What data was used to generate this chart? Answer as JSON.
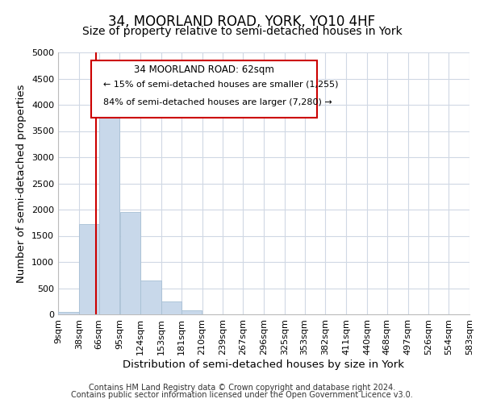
{
  "title": "34, MOORLAND ROAD, YORK, YO10 4HF",
  "subtitle": "Size of property relative to semi-detached houses in York",
  "xlabel": "Distribution of semi-detached houses by size in York",
  "ylabel": "Number of semi-detached properties",
  "bar_edges": [
    9,
    38,
    66,
    95,
    124,
    153,
    181,
    210,
    239,
    267,
    296,
    325,
    353,
    382,
    411,
    440,
    468,
    497,
    526,
    554,
    583
  ],
  "bar_heights": [
    50,
    1730,
    4020,
    1950,
    640,
    245,
    75,
    0,
    0,
    0,
    0,
    0,
    0,
    0,
    0,
    0,
    0,
    0,
    0,
    0
  ],
  "bar_color": "#c8d8ea",
  "bar_edgecolor": "#a8c0d4",
  "property_line_x": 62,
  "property_line_color": "#cc0000",
  "ylim": [
    0,
    5000
  ],
  "yticks": [
    0,
    500,
    1000,
    1500,
    2000,
    2500,
    3000,
    3500,
    4000,
    4500,
    5000
  ],
  "xtick_labels": [
    "9sqm",
    "38sqm",
    "66sqm",
    "95sqm",
    "124sqm",
    "153sqm",
    "181sqm",
    "210sqm",
    "239sqm",
    "267sqm",
    "296sqm",
    "325sqm",
    "353sqm",
    "382sqm",
    "411sqm",
    "440sqm",
    "468sqm",
    "497sqm",
    "526sqm",
    "554sqm",
    "583sqm"
  ],
  "ann_line1": "34 MOORLAND ROAD: 62sqm",
  "ann_line2": "← 15% of semi-detached houses are smaller (1,255)",
  "ann_line3": "84% of semi-detached houses are larger (7,280) →",
  "footnote1": "Contains HM Land Registry data © Crown copyright and database right 2024.",
  "footnote2": "Contains public sector information licensed under the Open Government Licence v3.0.",
  "background_color": "#ffffff",
  "grid_color": "#d0d8e4",
  "title_fontsize": 12,
  "subtitle_fontsize": 10,
  "axis_label_fontsize": 9.5,
  "tick_fontsize": 8,
  "footnote_fontsize": 7
}
